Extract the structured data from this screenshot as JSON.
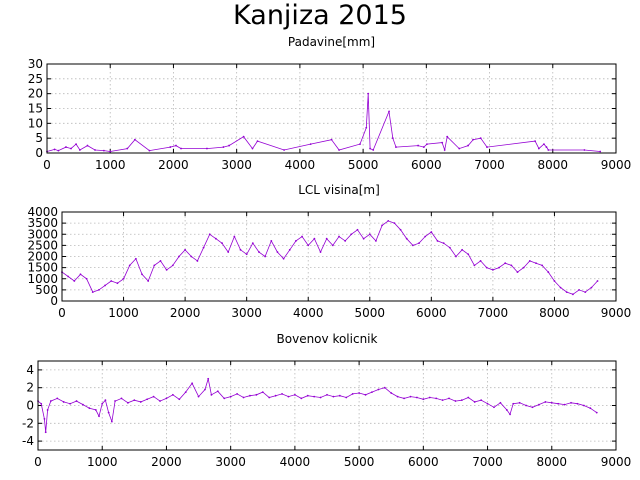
{
  "figure_title": "Kanjiza 2015",
  "chart_data": [
    {
      "type": "line",
      "title": "Padavine[mm]",
      "xlabel": "",
      "ylabel": "",
      "xlim": [
        0,
        9000
      ],
      "ylim": [
        0,
        30
      ],
      "xticks": [
        0,
        1000,
        2000,
        3000,
        4000,
        5000,
        6000,
        7000,
        8000,
        9000
      ],
      "yticks": [
        0,
        5,
        10,
        15,
        20,
        25,
        30
      ],
      "grid": true,
      "color": "#9400d3",
      "x": [
        0,
        120,
        180,
        300,
        380,
        460,
        520,
        640,
        760,
        900,
        1000,
        1270,
        1390,
        1620,
        1950,
        2040,
        2120,
        2530,
        2790,
        2880,
        3110,
        3250,
        3330,
        3750,
        4170,
        4500,
        4620,
        4950,
        5050,
        5080,
        5110,
        5160,
        5410,
        5470,
        5520,
        5870,
        5960,
        6010,
        6250,
        6290,
        6330,
        6520,
        6660,
        6740,
        6860,
        6960,
        7720,
        7780,
        7860,
        7900,
        7930,
        8500,
        8750
      ],
      "values": [
        0.5,
        1.2,
        0.8,
        2.0,
        1.5,
        3.0,
        1.0,
        2.5,
        1.0,
        0.8,
        0.5,
        1.5,
        4.5,
        0.8,
        2.0,
        2.5,
        1.5,
        1.5,
        2.0,
        2.5,
        5.5,
        1.5,
        4.0,
        1.0,
        3.0,
        4.5,
        1.0,
        3.0,
        8.5,
        20.0,
        1.5,
        1.0,
        14.0,
        5.0,
        2.0,
        2.5,
        2.0,
        3.0,
        3.5,
        1.0,
        5.5,
        1.5,
        2.5,
        4.5,
        5.0,
        2.0,
        4.0,
        1.5,
        3.0,
        2.0,
        1.0,
        1.0,
        0.5
      ]
    },
    {
      "type": "line",
      "title": "LCL visina[m]",
      "xlabel": "",
      "ylabel": "",
      "xlim": [
        0,
        9000
      ],
      "ylim": [
        0,
        4000
      ],
      "xticks": [
        0,
        1000,
        2000,
        3000,
        4000,
        5000,
        6000,
        7000,
        8000,
        9000
      ],
      "yticks": [
        0,
        500,
        1000,
        1500,
        2000,
        2500,
        3000,
        3500,
        4000
      ],
      "grid": true,
      "color": "#9400d3",
      "x": [
        0,
        100,
        200,
        300,
        400,
        500,
        600,
        700,
        800,
        900,
        1000,
        1100,
        1200,
        1300,
        1400,
        1500,
        1600,
        1700,
        1800,
        1900,
        2000,
        2100,
        2200,
        2300,
        2400,
        2500,
        2600,
        2700,
        2800,
        2900,
        3000,
        3100,
        3200,
        3300,
        3400,
        3500,
        3600,
        3700,
        3800,
        3900,
        4000,
        4100,
        4200,
        4300,
        4400,
        4500,
        4600,
        4700,
        4800,
        4900,
        5000,
        5100,
        5200,
        5300,
        5400,
        5500,
        5600,
        5700,
        5800,
        5900,
        6000,
        6100,
        6200,
        6300,
        6400,
        6500,
        6600,
        6700,
        6800,
        6900,
        7000,
        7100,
        7200,
        7300,
        7400,
        7500,
        7600,
        7700,
        7800,
        7900,
        8000,
        8100,
        8200,
        8300,
        8400,
        8500,
        8600,
        8700
      ],
      "values": [
        1300,
        1100,
        900,
        1200,
        1000,
        400,
        500,
        700,
        900,
        800,
        1000,
        1600,
        1900,
        1200,
        900,
        1600,
        1800,
        1400,
        1600,
        2000,
        2300,
        2000,
        1800,
        2400,
        3000,
        2800,
        2600,
        2200,
        2900,
        2300,
        2100,
        2600,
        2200,
        2000,
        2700,
        2200,
        1900,
        2300,
        2700,
        2900,
        2500,
        2800,
        2200,
        2800,
        2500,
        2900,
        2700,
        3000,
        3200,
        2800,
        3000,
        2700,
        3400,
        3600,
        3500,
        3200,
        2800,
        2500,
        2600,
        2900,
        3100,
        2700,
        2600,
        2400,
        2000,
        2300,
        2100,
        1600,
        1800,
        1500,
        1400,
        1500,
        1700,
        1600,
        1300,
        1500,
        1800,
        1700,
        1600,
        1300,
        900,
        600,
        400,
        300,
        500,
        400,
        600,
        900
      ]
    },
    {
      "type": "line",
      "title": "Bovenov kolicnik",
      "xlabel": "",
      "ylabel": "",
      "xlim": [
        0,
        9000
      ],
      "ylim": [
        -5,
        5
      ],
      "xticks": [
        0,
        1000,
        2000,
        3000,
        4000,
        5000,
        6000,
        7000,
        8000,
        9000
      ],
      "yticks": [
        -4,
        -2,
        0,
        2,
        4
      ],
      "grid": true,
      "color": "#9400d3",
      "x": [
        0,
        50,
        100,
        120,
        150,
        200,
        300,
        400,
        500,
        600,
        700,
        800,
        900,
        950,
        1000,
        1050,
        1100,
        1150,
        1200,
        1300,
        1400,
        1500,
        1600,
        1700,
        1800,
        1900,
        2000,
        2100,
        2200,
        2300,
        2400,
        2500,
        2600,
        2650,
        2700,
        2800,
        2900,
        3000,
        3100,
        3200,
        3300,
        3400,
        3500,
        3600,
        3700,
        3800,
        3900,
        4000,
        4100,
        4200,
        4300,
        4400,
        4500,
        4600,
        4700,
        4800,
        4900,
        5000,
        5100,
        5200,
        5300,
        5400,
        5500,
        5600,
        5700,
        5800,
        5900,
        6000,
        6100,
        6200,
        6300,
        6400,
        6500,
        6600,
        6700,
        6800,
        6900,
        7000,
        7100,
        7200,
        7300,
        7350,
        7400,
        7500,
        7600,
        7700,
        7800,
        7900,
        8000,
        8100,
        8200,
        8300,
        8400,
        8500,
        8600,
        8700
      ],
      "values": [
        0.5,
        0.2,
        -1.5,
        -3.0,
        -0.5,
        0.5,
        0.8,
        0.4,
        0.2,
        0.5,
        0.1,
        -0.3,
        -0.5,
        -1.2,
        0.2,
        0.6,
        -0.8,
        -1.8,
        0.5,
        0.8,
        0.3,
        0.6,
        0.4,
        0.7,
        1.0,
        0.5,
        0.8,
        1.2,
        0.7,
        1.5,
        2.5,
        1.0,
        1.8,
        3.0,
        1.2,
        1.6,
        0.8,
        1.0,
        1.3,
        0.9,
        1.1,
        1.2,
        1.5,
        0.9,
        1.1,
        1.3,
        1.0,
        1.2,
        0.8,
        1.1,
        1.0,
        0.9,
        1.2,
        1.0,
        1.1,
        0.9,
        1.3,
        1.4,
        1.2,
        1.5,
        1.8,
        2.0,
        1.4,
        1.0,
        0.8,
        1.0,
        0.9,
        0.7,
        0.9,
        0.8,
        0.6,
        0.8,
        0.5,
        0.6,
        0.9,
        0.4,
        0.6,
        0.2,
        -0.2,
        0.3,
        -0.5,
        -1.0,
        0.2,
        0.3,
        0.0,
        -0.2,
        0.1,
        0.4,
        0.3,
        0.2,
        0.1,
        0.3,
        0.2,
        0.0,
        -0.3,
        -0.8
      ]
    }
  ]
}
